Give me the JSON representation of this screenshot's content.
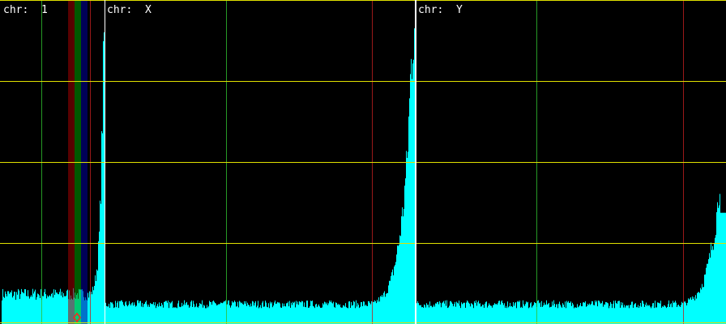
{
  "chart_data": {
    "type": "bar",
    "grid": true,
    "colors": {
      "background": "#000000",
      "bars": "#00ffff",
      "gridline_horizontal": "#e0e000",
      "divider": "#ffffff",
      "marker_green": "#30c030",
      "marker_red": "#c02020"
    },
    "panels": [
      {
        "label": "chr:  1",
        "baseline_level": 0.085,
        "rise_values": [
          0.09,
          0.1,
          0.12,
          0.15,
          0.2,
          0.3,
          0.5,
          0.75,
          1.0
        ]
      },
      {
        "label": "chr:  X",
        "baseline_level": 0.055,
        "rise_values": [
          0.06,
          0.07,
          0.08,
          0.1,
          0.13,
          0.18,
          0.25,
          0.35,
          0.5,
          0.8,
          1.0
        ]
      },
      {
        "label": "chr:  Y",
        "baseline_level": 0.055,
        "rise_values": [
          0.06,
          0.07,
          0.08,
          0.1,
          0.13,
          0.18,
          0.25,
          0.35,
          0.55,
          0.34
        ]
      }
    ],
    "highlight_bands": [
      {
        "color": "#a00000"
      },
      {
        "color": "#00a000"
      },
      {
        "color": "#0000a0"
      }
    ],
    "marker": {
      "shape": "diamond",
      "color": "#ff2020"
    }
  }
}
